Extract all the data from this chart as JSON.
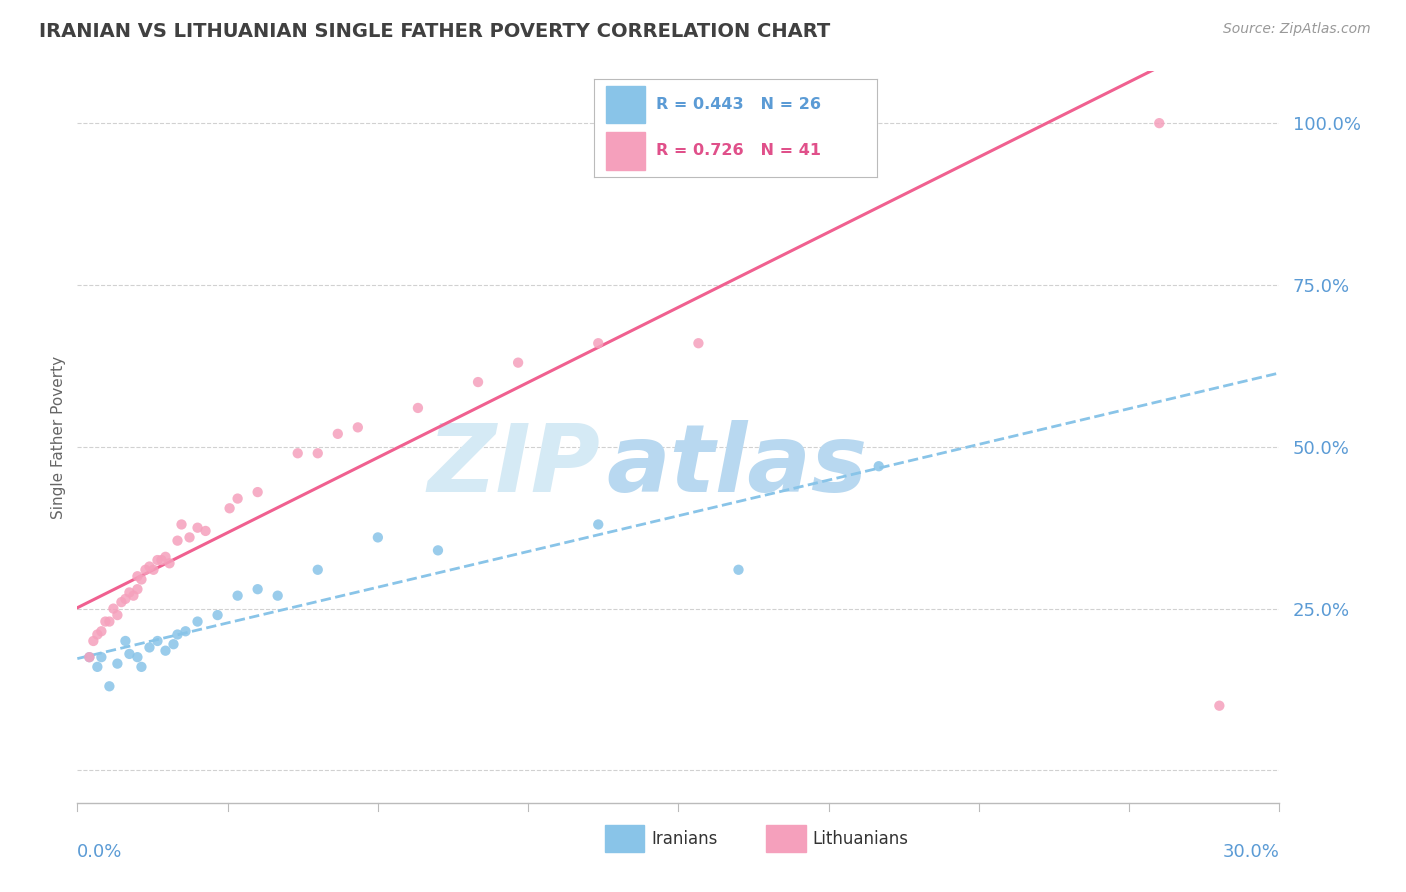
{
  "title": "IRANIAN VS LITHUANIAN SINGLE FATHER POVERTY CORRELATION CHART",
  "source": "Source: ZipAtlas.com",
  "ylabel": "Single Father Poverty",
  "xlim": [
    0.0,
    0.3
  ],
  "ylim": [
    -0.05,
    1.08
  ],
  "iranians_R": 0.443,
  "iranians_N": 26,
  "lithuanians_R": 0.726,
  "lithuanians_N": 41,
  "color_iranian": "#89C4E8",
  "color_lithuanian": "#F5A0BC",
  "color_iranian_line": "#89C4E8",
  "color_lithuanian_line": "#F06090",
  "watermark_top": "ZIP",
  "watermark_bot": "atlas",
  "watermark_color": "#D5EAF5",
  "legend_R_iranian": "R = 0.443",
  "legend_N_iranian": "N = 26",
  "legend_R_lithuanian": "R = 0.726",
  "legend_N_lithuanian": "N = 41",
  "iranians_x": [
    0.003,
    0.005,
    0.006,
    0.008,
    0.01,
    0.012,
    0.013,
    0.015,
    0.016,
    0.018,
    0.02,
    0.022,
    0.024,
    0.025,
    0.027,
    0.03,
    0.035,
    0.04,
    0.045,
    0.05,
    0.06,
    0.075,
    0.09,
    0.13,
    0.165,
    0.2
  ],
  "iranians_y": [
    0.175,
    0.16,
    0.175,
    0.13,
    0.165,
    0.2,
    0.18,
    0.175,
    0.16,
    0.19,
    0.2,
    0.185,
    0.195,
    0.21,
    0.215,
    0.23,
    0.24,
    0.27,
    0.28,
    0.27,
    0.31,
    0.36,
    0.34,
    0.38,
    0.31,
    0.47
  ],
  "lithuanians_x": [
    0.003,
    0.004,
    0.005,
    0.006,
    0.007,
    0.008,
    0.009,
    0.01,
    0.011,
    0.012,
    0.013,
    0.014,
    0.015,
    0.015,
    0.016,
    0.017,
    0.018,
    0.019,
    0.02,
    0.021,
    0.022,
    0.023,
    0.025,
    0.026,
    0.028,
    0.03,
    0.032,
    0.038,
    0.04,
    0.045,
    0.055,
    0.06,
    0.065,
    0.07,
    0.085,
    0.1,
    0.11,
    0.13,
    0.155,
    0.27,
    0.285
  ],
  "lithuanians_y": [
    0.175,
    0.2,
    0.21,
    0.215,
    0.23,
    0.23,
    0.25,
    0.24,
    0.26,
    0.265,
    0.275,
    0.27,
    0.28,
    0.3,
    0.295,
    0.31,
    0.315,
    0.31,
    0.325,
    0.325,
    0.33,
    0.32,
    0.355,
    0.38,
    0.36,
    0.375,
    0.37,
    0.405,
    0.42,
    0.43,
    0.49,
    0.49,
    0.52,
    0.53,
    0.56,
    0.6,
    0.63,
    0.66,
    0.66,
    1.0,
    0.1
  ],
  "yticks": [
    0.0,
    0.25,
    0.5,
    0.75,
    1.0
  ],
  "ytick_labels": [
    "",
    "25.0%",
    "50.0%",
    "75.0%",
    "100.0%"
  ],
  "xtick_left": "0.0%",
  "xtick_right": "30.0%",
  "legend_label_iranian": "Iranians",
  "legend_label_lithuanian": "Lithuanians",
  "bg_color": "#FFFFFF",
  "grid_color": "#CCCCCC",
  "tick_color": "#5B9BD5",
  "title_color": "#404040",
  "title_fontsize": 14,
  "source_fontsize": 10
}
